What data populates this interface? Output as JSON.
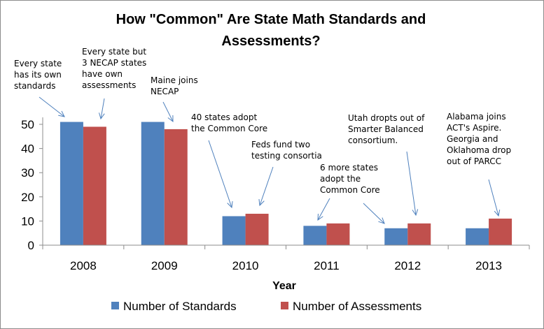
{
  "chart_data": {
    "type": "bar",
    "title_lines": [
      "How \"Common\" Are State Math Standards and",
      "Assessments?"
    ],
    "xlabel": "Year",
    "ylabel": "",
    "categories": [
      "2008",
      "2009",
      "2010",
      "2011",
      "2012",
      "2013"
    ],
    "series": [
      {
        "name": "Number of Standards",
        "color": "#4f81bd",
        "values": [
          51,
          51,
          12,
          8,
          7,
          7
        ]
      },
      {
        "name": "Number of Assessments",
        "color": "#c0504d",
        "values": [
          49,
          48,
          13,
          9,
          9,
          11
        ]
      }
    ],
    "ylim": [
      0,
      50
    ],
    "yticks": [
      0,
      10,
      20,
      30,
      40,
      50
    ],
    "grid": false,
    "legend_position": "bottom",
    "annotations": [
      {
        "lines": [
          "Every state",
          "has its own",
          "standards"
        ]
      },
      {
        "lines": [
          "Every state but",
          "3 NECAP states",
          "have own",
          "assessments"
        ]
      },
      {
        "lines": [
          "Maine joins",
          "NECAP"
        ]
      },
      {
        "lines": [
          "40 states adopt",
          "the Common Core"
        ]
      },
      {
        "lines": [
          "Feds fund two",
          "testing consortia"
        ]
      },
      {
        "lines": [
          "6 more states",
          "adopt the",
          "Common Core"
        ]
      },
      {
        "lines": [
          "Utah dropts out of",
          "Smarter Balanced",
          "consortium."
        ]
      },
      {
        "lines": [
          "Alabama joins",
          "ACT's Aspire.",
          "Georgia and",
          "Oklahoma drop",
          "out of PARCC"
        ]
      }
    ]
  }
}
